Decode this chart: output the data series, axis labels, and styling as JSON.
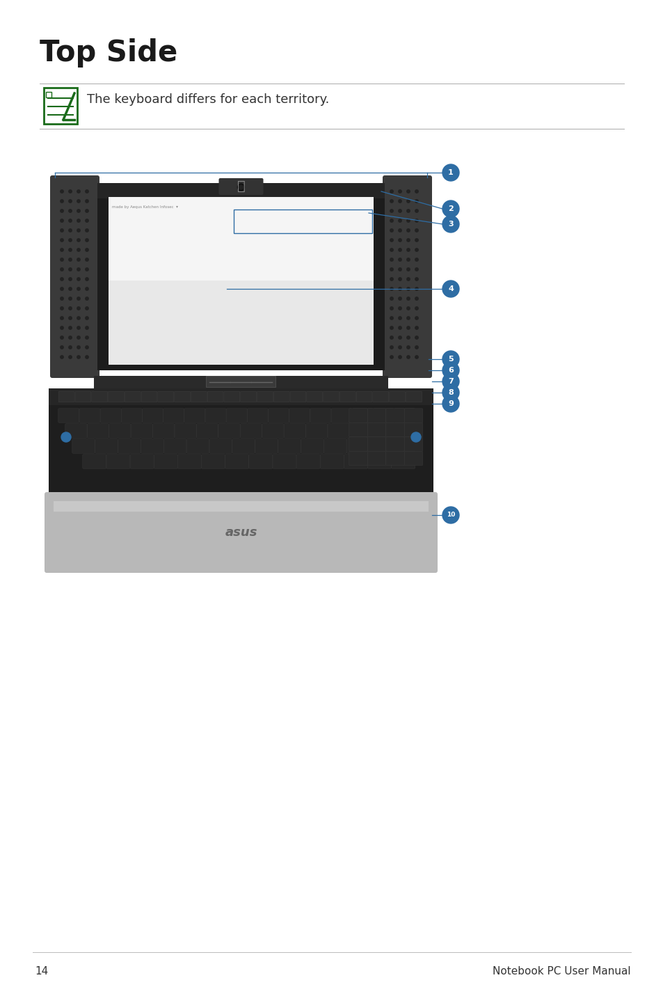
{
  "title": "Top Side",
  "note_text": "The keyboard differs for each territory.",
  "page_number": "14",
  "footer_right": "Notebook PC User Manual",
  "bg_color": "#ffffff",
  "title_color": "#1a1a1a",
  "note_color": "#333333",
  "footer_line_color": "#bbbbbb",
  "blue_color": "#2e6da4",
  "callout_numbers": [
    "1",
    "2",
    "3",
    "4",
    "5",
    "6",
    "7",
    "8",
    "9",
    "10"
  ],
  "icon_border_color": "#1a6b1a",
  "icon_fill_color": "#ffffff",
  "laptop_frame_color": "#3a3a3a",
  "laptop_frame_dark": "#222222",
  "laptop_screen_bg_top": "#f0f0f0",
  "laptop_screen_bg_bot": "#c8c8c8",
  "laptop_speaker_color": "#2a2a2a",
  "laptop_bezel_color": "#1c1c1c",
  "laptop_hinge_color": "#444444",
  "laptop_base_color": "#1e1e1e",
  "laptop_silver_color": "#b0b0b0",
  "laptop_silver_light": "#d0d0d0",
  "key_color": "#2a2a2a",
  "key_edge": "#444444"
}
